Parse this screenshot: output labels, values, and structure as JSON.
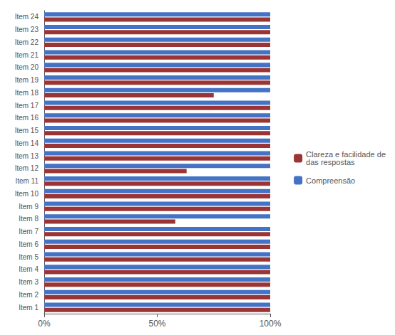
{
  "chart_data": {
    "type": "bar",
    "orientation": "horizontal",
    "categories": [
      "Item 1",
      "Item 2",
      "Item 3",
      "Item 4",
      "Item 5",
      "Item 6",
      "Item 7",
      "Item 8",
      "Item 9",
      "Item 10",
      "Item 11",
      "Item 12",
      "Item 13",
      "Item 14",
      "Item 15",
      "Item 16",
      "Item 17",
      "Item 18",
      "Item 19",
      "Item 20",
      "Item 21",
      "Item 22",
      "Item 23",
      "Item 24"
    ],
    "series": [
      {
        "name": "Clareza e facilidade de\ndas respostas",
        "color": "#9B3535",
        "values": [
          1.0,
          1.0,
          1.0,
          1.0,
          1.0,
          1.0,
          1.0,
          0.58,
          1.0,
          1.0,
          1.0,
          0.63,
          1.0,
          1.0,
          1.0,
          1.0,
          1.0,
          0.75,
          1.0,
          1.0,
          1.0,
          1.0,
          1.0,
          1.0
        ]
      },
      {
        "name": "Compreensão",
        "color": "#4472C4",
        "values": [
          1.0,
          1.0,
          1.0,
          1.0,
          1.0,
          1.0,
          1.0,
          1.0,
          1.0,
          1.0,
          1.0,
          1.0,
          1.0,
          1.0,
          1.0,
          1.0,
          1.0,
          1.0,
          1.0,
          1.0,
          1.0,
          1.0,
          1.0,
          1.0
        ]
      }
    ],
    "xlim": [
      0,
      1
    ],
    "xticks": [
      {
        "value": 0,
        "label": "0%"
      },
      {
        "value": 0.5,
        "label": "50%"
      },
      {
        "value": 1,
        "label": "100%"
      }
    ],
    "grid": false,
    "legend": "right"
  }
}
